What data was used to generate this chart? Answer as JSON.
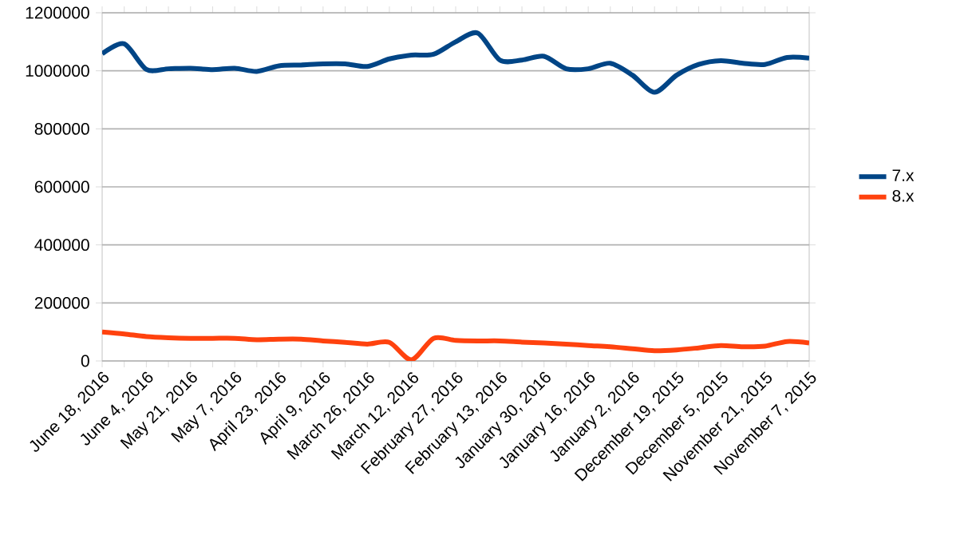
{
  "chart_data": {
    "type": "line",
    "categories": [
      "June 18, 2016",
      null,
      "June 4, 2016",
      null,
      "May 21, 2016",
      null,
      "May 7, 2016",
      null,
      "April 23, 2016",
      null,
      "April 9, 2016",
      null,
      "March 26, 2016",
      null,
      "March 12, 2016",
      null,
      "February 27, 2016",
      null,
      "February 13, 2016",
      null,
      "January 30, 2016",
      null,
      "January 16, 2016",
      null,
      "January 2, 2016",
      null,
      "December 19, 2015",
      null,
      "December 5, 2015",
      null,
      "November 21, 2015",
      null,
      "November 7, 2015"
    ],
    "series": [
      {
        "name": "7.x",
        "color": "#004586",
        "values": [
          1059000,
          1093000,
          1005000,
          1007000,
          1009000,
          1004000,
          1009000,
          998000,
          1017000,
          1020000,
          1024000,
          1024000,
          1015000,
          1041000,
          1054000,
          1057000,
          1100000,
          1130000,
          1037000,
          1037000,
          1050000,
          1007000,
          1007000,
          1026000,
          985000,
          926000,
          985000,
          1022000,
          1035000,
          1026000,
          1022000,
          1046000,
          1044000
        ]
      },
      {
        "name": "8.x",
        "color": "#ff420e",
        "values": [
          100000,
          93000,
          84000,
          80000,
          78000,
          78000,
          78000,
          73000,
          75000,
          75000,
          69000,
          64000,
          58000,
          64000,
          4000,
          78000,
          71000,
          69000,
          69000,
          65000,
          62000,
          58000,
          53000,
          49000,
          42000,
          35000,
          38000,
          45000,
          53000,
          49000,
          51000,
          67000,
          62000
        ]
      }
    ],
    "ylim": [
      0,
      1200000
    ],
    "yticks": [
      0,
      200000,
      400000,
      600000,
      800000,
      1000000,
      1200000
    ],
    "grid": "y",
    "legend": "right",
    "line_style": "solid"
  }
}
